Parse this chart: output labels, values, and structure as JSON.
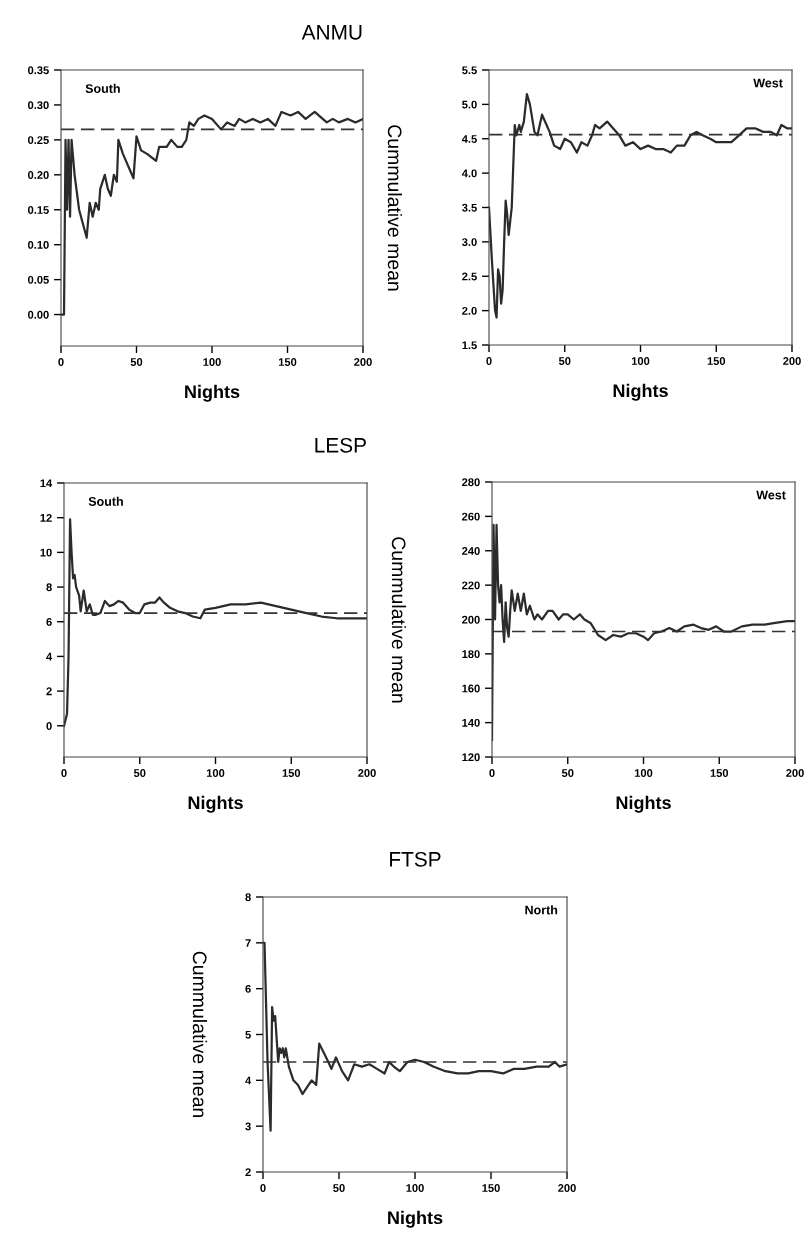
{
  "chart_data": [
    {
      "type": "line",
      "title": "ANMU",
      "xlabel": "Nights",
      "ylabel": "Cummulative mean",
      "annotations": [
        "South"
      ],
      "xlim": [
        0,
        200
      ],
      "xticks": [
        0,
        50,
        100,
        150,
        200
      ],
      "ylim": [
        -0.045,
        0.35
      ],
      "yticks": [
        {
          "value": 0,
          "label": "0.00"
        },
        0.05,
        {
          "value": 0.1,
          "label": "0.10"
        },
        0.15,
        {
          "value": 0.2,
          "label": "0.20"
        },
        0.25,
        {
          "value": 0.3,
          "label": "0.30"
        },
        0.35
      ],
      "line_style": "solid",
      "ref_lines": [
        {
          "axis": "y",
          "value": 0.265,
          "line_style": "dashed",
          "color": "#333333"
        }
      ],
      "series": [
        {
          "color": "#2b2b2b",
          "x": [
            0,
            2,
            3,
            4,
            5,
            6,
            7,
            9,
            12,
            17,
            19,
            21,
            23,
            25,
            26,
            29,
            31,
            33,
            35,
            37,
            38,
            41,
            48,
            50,
            53,
            57,
            63,
            65,
            70,
            73,
            77,
            80,
            83,
            85,
            88,
            91,
            95,
            100,
            106,
            110,
            115,
            118,
            122,
            127,
            132,
            137,
            142,
            146,
            152,
            157,
            162,
            168,
            176,
            180,
            184,
            190,
            195,
            200
          ],
          "values": [
            0,
            0,
            0.25,
            0.15,
            0.25,
            0.14,
            0.25,
            0.2,
            0.15,
            0.11,
            0.16,
            0.14,
            0.16,
            0.15,
            0.18,
            0.2,
            0.18,
            0.17,
            0.2,
            0.19,
            0.25,
            0.23,
            0.195,
            0.255,
            0.235,
            0.23,
            0.22,
            0.24,
            0.24,
            0.25,
            0.24,
            0.24,
            0.25,
            0.275,
            0.27,
            0.28,
            0.285,
            0.28,
            0.265,
            0.275,
            0.27,
            0.28,
            0.275,
            0.28,
            0.275,
            0.28,
            0.27,
            0.29,
            0.285,
            0.29,
            0.28,
            0.29,
            0.275,
            0.28,
            0.275,
            0.28,
            0.275,
            0.28
          ]
        }
      ]
    },
    {
      "type": "line",
      "xlabel": "Nights",
      "annotations": [
        "West"
      ],
      "xlim": [
        0,
        200
      ],
      "xticks": [
        0,
        50,
        100,
        150,
        200
      ],
      "ylim": [
        1.5,
        5.5
      ],
      "yticks": [
        1.5,
        {
          "value": 2,
          "label": "2.0"
        },
        2.5,
        {
          "value": 3,
          "label": "3.0"
        },
        3.5,
        {
          "value": 4,
          "label": "4.0"
        },
        4.5,
        {
          "value": 5,
          "label": "5.0"
        },
        5.5
      ],
      "line_style": "solid",
      "ref_lines": [
        {
          "axis": "y",
          "value": 4.56,
          "line_style": "dashed",
          "color": "#333333"
        }
      ],
      "series": [
        {
          "color": "#2b2b2b",
          "x": [
            0,
            2,
            4,
            5,
            6,
            7,
            8,
            9,
            10,
            11,
            12,
            13,
            14,
            15,
            17,
            18,
            20,
            21,
            23,
            25,
            27,
            30,
            32,
            35,
            38,
            40,
            43,
            47,
            50,
            54,
            58,
            61,
            65,
            68,
            70,
            73,
            78,
            82,
            86,
            90,
            95,
            100,
            105,
            110,
            115,
            120,
            124,
            129,
            133,
            137,
            141,
            146,
            150,
            155,
            160,
            165,
            170,
            176,
            181,
            186,
            190,
            193,
            197,
            200
          ],
          "values": [
            3.5,
            2.7,
            2.0,
            1.9,
            2.6,
            2.5,
            2.1,
            2.3,
            3.0,
            3.6,
            3.4,
            3.1,
            3.3,
            3.5,
            4.7,
            4.55,
            4.7,
            4.6,
            4.75,
            5.15,
            5.0,
            4.6,
            4.55,
            4.85,
            4.7,
            4.6,
            4.4,
            4.35,
            4.5,
            4.45,
            4.3,
            4.45,
            4.4,
            4.55,
            4.7,
            4.65,
            4.75,
            4.65,
            4.55,
            4.4,
            4.45,
            4.35,
            4.4,
            4.35,
            4.35,
            4.3,
            4.4,
            4.4,
            4.55,
            4.6,
            4.55,
            4.5,
            4.45,
            4.45,
            4.45,
            4.55,
            4.65,
            4.65,
            4.6,
            4.6,
            4.55,
            4.7,
            4.65,
            4.65
          ]
        }
      ]
    },
    {
      "type": "line",
      "title": "LESP",
      "xlabel": "Nights",
      "ylabel": "Cummulative mean",
      "annotations": [
        "South"
      ],
      "xlim": [
        0,
        200
      ],
      "xticks": [
        0,
        50,
        100,
        150,
        200
      ],
      "ylim": [
        -1.8,
        14
      ],
      "yticks": [
        0,
        2,
        4,
        6,
        8,
        10,
        12,
        14
      ],
      "line_style": "solid",
      "ref_lines": [
        {
          "axis": "y",
          "value": 6.5,
          "line_style": "dashed",
          "color": "#333333"
        }
      ],
      "series": [
        {
          "color": "#2b2b2b",
          "x": [
            0,
            2,
            3,
            4,
            5,
            6,
            7,
            8,
            10,
            11,
            13,
            15,
            17,
            19,
            21,
            24,
            27,
            30,
            33,
            36,
            39,
            43,
            47,
            50,
            53,
            57,
            60,
            63,
            66,
            70,
            75,
            80,
            85,
            90,
            93,
            100,
            110,
            120,
            130,
            140,
            150,
            160,
            170,
            180,
            200
          ],
          "values": [
            0,
            0.7,
            4,
            11.9,
            10,
            8.5,
            8.7,
            8,
            7.5,
            6.6,
            7.8,
            6.6,
            7,
            6.4,
            6.4,
            6.5,
            7.2,
            6.9,
            7,
            7.2,
            7.1,
            6.7,
            6.5,
            6.5,
            7,
            7.1,
            7.1,
            7.4,
            7.1,
            6.8,
            6.6,
            6.5,
            6.3,
            6.2,
            6.7,
            6.8,
            7,
            7,
            7.1,
            6.9,
            6.7,
            6.5,
            6.3,
            6.2,
            6.2
          ]
        }
      ]
    },
    {
      "type": "line",
      "xlabel": "Nights",
      "annotations": [
        "West"
      ],
      "xlim": [
        0,
        200
      ],
      "xticks": [
        0,
        50,
        100,
        150,
        200
      ],
      "ylim": [
        120,
        280
      ],
      "yticks": [
        120,
        140,
        160,
        180,
        200,
        220,
        240,
        260,
        280
      ],
      "line_style": "solid",
      "ref_lines": [
        {
          "axis": "y",
          "value": 193,
          "line_style": "dashed",
          "color": "#333333"
        }
      ],
      "series": [
        {
          "color": "#2b2b2b",
          "x": [
            0,
            1,
            2,
            3,
            4,
            5,
            6,
            7,
            8,
            9,
            10,
            11,
            12,
            13,
            15,
            17,
            19,
            21,
            23,
            25,
            28,
            30,
            33,
            37,
            40,
            44,
            47,
            50,
            54,
            58,
            61,
            65,
            70,
            75,
            80,
            85,
            90,
            95,
            100,
            103,
            107,
            112,
            117,
            122,
            127,
            133,
            138,
            143,
            148,
            153,
            158,
            165,
            172,
            180,
            187,
            195,
            200
          ],
          "values": [
            130,
            255,
            200,
            255,
            220,
            210,
            220,
            200,
            187,
            210,
            195,
            190,
            205,
            217,
            205,
            215,
            205,
            215,
            203,
            208,
            200,
            203,
            200,
            205,
            205,
            200,
            203,
            203,
            200,
            203,
            200,
            198,
            191,
            188,
            191,
            190,
            192,
            192,
            190,
            188,
            192,
            193,
            195,
            193,
            196,
            197,
            195,
            194,
            196,
            193,
            193,
            196,
            197,
            197,
            198,
            199,
            199
          ]
        }
      ]
    },
    {
      "type": "line",
      "title": "FTSP",
      "xlabel": "Nights",
      "ylabel": "Cummulative mean",
      "annotations": [
        "North"
      ],
      "xlim": [
        0,
        200
      ],
      "xticks": [
        0,
        50,
        100,
        150,
        200
      ],
      "ylim": [
        2,
        8
      ],
      "yticks": [
        2,
        3,
        4,
        5,
        6,
        7,
        8
      ],
      "line_style": "solid",
      "ref_lines": [
        {
          "axis": "y",
          "value": 4.4,
          "line_style": "dashed",
          "color": "#333333"
        }
      ],
      "series": [
        {
          "color": "#2b2b2b",
          "x": [
            0,
            1,
            3,
            5,
            6,
            7,
            8,
            10,
            11,
            12,
            13,
            14,
            15,
            17,
            20,
            23,
            26,
            29,
            32,
            35,
            37,
            40,
            43,
            45,
            48,
            52,
            56,
            60,
            65,
            70,
            75,
            80,
            83,
            86,
            90,
            95,
            100,
            106,
            112,
            120,
            128,
            135,
            142,
            150,
            158,
            165,
            172,
            180,
            188,
            192,
            195,
            200
          ],
          "values": [
            7,
            7,
            4.4,
            2.9,
            5.6,
            5.3,
            5.4,
            4.4,
            4.7,
            4.6,
            4.7,
            4.5,
            4.7,
            4.3,
            4.0,
            3.9,
            3.7,
            3.85,
            4.0,
            3.9,
            4.8,
            4.6,
            4.4,
            4.25,
            4.5,
            4.2,
            4.0,
            4.35,
            4.3,
            4.35,
            4.25,
            4.15,
            4.4,
            4.3,
            4.2,
            4.4,
            4.45,
            4.4,
            4.3,
            4.2,
            4.15,
            4.15,
            4.2,
            4.2,
            4.15,
            4.25,
            4.25,
            4.3,
            4.3,
            4.4,
            4.3,
            4.35
          ]
        }
      ]
    }
  ]
}
